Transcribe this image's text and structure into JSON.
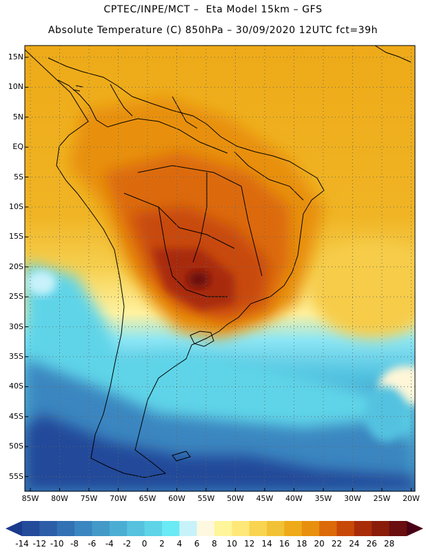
{
  "header": {
    "line1": "CPTEC/INPE/MCT –  Eta Model 15km – GFS",
    "line2": "Absolute Temperature (C) 850hPa – 30/09/2020 12UTC fct=39h"
  },
  "map": {
    "lat_labels": [
      "15N",
      "10N",
      "5N",
      "EQ",
      "5S",
      "10S",
      "15S",
      "20S",
      "25S",
      "30S",
      "35S",
      "40S",
      "45S",
      "50S",
      "55S"
    ],
    "lon_labels": [
      "85W",
      "80W",
      "75W",
      "70W",
      "65W",
      "60W",
      "55W",
      "50W",
      "45W",
      "40W",
      "35W",
      "30W",
      "25W",
      "20W"
    ]
  },
  "colorbar": {
    "labels": [
      "-14",
      "-12",
      "-10",
      "-8",
      "-6",
      "-4",
      "-2",
      "0",
      "2",
      "4",
      "6",
      "8",
      "10",
      "12",
      "14",
      "16",
      "18",
      "20",
      "22",
      "24",
      "26",
      "28"
    ],
    "colors": [
      "#1a3a8c",
      "#244a9a",
      "#2c5ea8",
      "#3271b4",
      "#3a86c0",
      "#4399c8",
      "#4cadd4",
      "#56c2de",
      "#5fd4e8",
      "#6aeaf4",
      "#c8f2fa",
      "#fff8e0",
      "#fff59a",
      "#ffe878",
      "#f8d450",
      "#f2c236",
      "#eeaa18",
      "#e8900e",
      "#dc6a08",
      "#c84808",
      "#a82c08",
      "#8a1c0a",
      "#6a0e10",
      "#4a0014"
    ]
  }
}
